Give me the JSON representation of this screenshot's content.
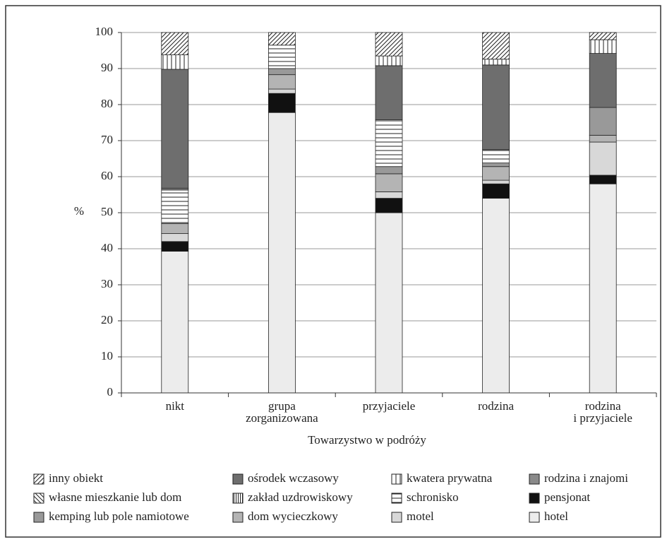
{
  "chart_data": {
    "type": "stacked-bar",
    "x_label": "Towarzystwo w podróży",
    "y_label": "%",
    "categories": [
      "nikt",
      "grupa\nzorganizowana",
      "przyjaciele",
      "rodzina",
      "rodzina\ni przyjaciele"
    ],
    "ylim": [
      0,
      100
    ],
    "yticks": [
      0,
      10,
      20,
      30,
      40,
      50,
      60,
      70,
      80,
      90,
      100
    ],
    "grid": true,
    "series": [
      {
        "name": "hotel",
        "color": "#ececec",
        "values": [
          39.3,
          77.8,
          50,
          54,
          58
        ]
      },
      {
        "name": "pensjonat",
        "color": "#111111",
        "values": [
          2.7,
          5.3,
          4,
          4,
          2.4
        ]
      },
      {
        "name": "motel",
        "color": "#d8d8d8",
        "values": [
          2.2,
          1.2,
          1.8,
          1,
          9.2
        ]
      },
      {
        "name": "dom wycieczkowy",
        "color": "#b4b4b4",
        "values": [
          2.8,
          4,
          5,
          3.8,
          1.9
        ]
      },
      {
        "name": "kemping lub pole namiotowe",
        "color": "#999999",
        "values": [
          0,
          1.7,
          2,
          1,
          7.7
        ]
      },
      {
        "name": "schronisko",
        "color": "#ffffff",
        "pattern": "horizontal",
        "values": [
          9.3,
          6.5,
          13,
          3.7,
          0
        ]
      },
      {
        "name": "rodzina i znajomi",
        "color": "#8a8a8a",
        "values": [
          0.5,
          0,
          0,
          0,
          0
        ]
      },
      {
        "name": "ośrodek wczasowy",
        "color": "#6e6e6e",
        "values": [
          33,
          0,
          15,
          23.5,
          15
        ]
      },
      {
        "name": "zakład uzdrowiskowy",
        "color": "#ffffff",
        "pattern": "vertical-fine",
        "values": [
          0,
          0,
          0,
          0,
          0
        ]
      },
      {
        "name": "kwatera prywatna",
        "color": "#ffffff",
        "pattern": "vertical",
        "values": [
          4,
          0,
          2.7,
          1.6,
          3.8
        ]
      },
      {
        "name": "własne mieszkanie lub dom",
        "color": "#ffffff",
        "pattern": "diagonal-back",
        "values": [
          0,
          0,
          0,
          0,
          0
        ]
      },
      {
        "name": "inny obiekt",
        "color": "#ffffff",
        "pattern": "diagonal",
        "values": [
          6.2,
          3.5,
          6.5,
          7.4,
          2
        ]
      }
    ]
  }
}
